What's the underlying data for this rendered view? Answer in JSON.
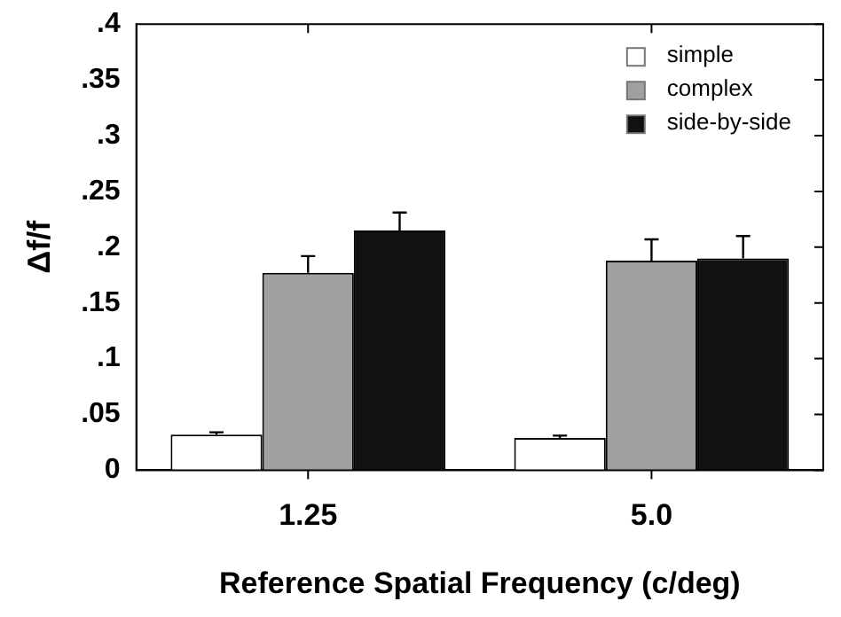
{
  "chart_data": {
    "type": "bar",
    "xlabel": "Reference Spatial Frequency (c/deg)",
    "ylabel": "Δf/f",
    "categories": [
      "1.25",
      "5.0"
    ],
    "series": [
      {
        "name": "simple",
        "color": "#ffffff",
        "values": [
          0.032,
          0.029
        ],
        "errors": [
          [
            0.032,
            0.034
          ],
          [
            0.029,
            0.031
          ]
        ]
      },
      {
        "name": "complex",
        "color": "#a0a0a0",
        "values": [
          0.177,
          0.188
        ],
        "errors": [
          [
            0.177,
            0.192
          ],
          [
            0.188,
            0.207
          ]
        ]
      },
      {
        "name": "side-by-side",
        "color": "#111111",
        "values": [
          0.215,
          0.19
        ],
        "errors": [
          [
            0.215,
            0.231
          ],
          [
            0.19,
            0.21
          ]
        ]
      }
    ],
    "ylim": [
      0,
      0.4
    ],
    "yticks": [
      0,
      {
        "value": 0.05,
        "label": ".05"
      },
      {
        "value": 0.1,
        "label": ".1"
      },
      {
        "value": 0.15,
        "label": ".15"
      },
      {
        "value": 0.2,
        "label": ".2"
      },
      {
        "value": 0.25,
        "label": ".25"
      },
      {
        "value": 0.3,
        "label": ".3"
      },
      {
        "value": 0.35,
        "label": ".35"
      },
      {
        "value": 0.4,
        "label": ".4"
      }
    ],
    "grid": false,
    "legend": "top right"
  }
}
